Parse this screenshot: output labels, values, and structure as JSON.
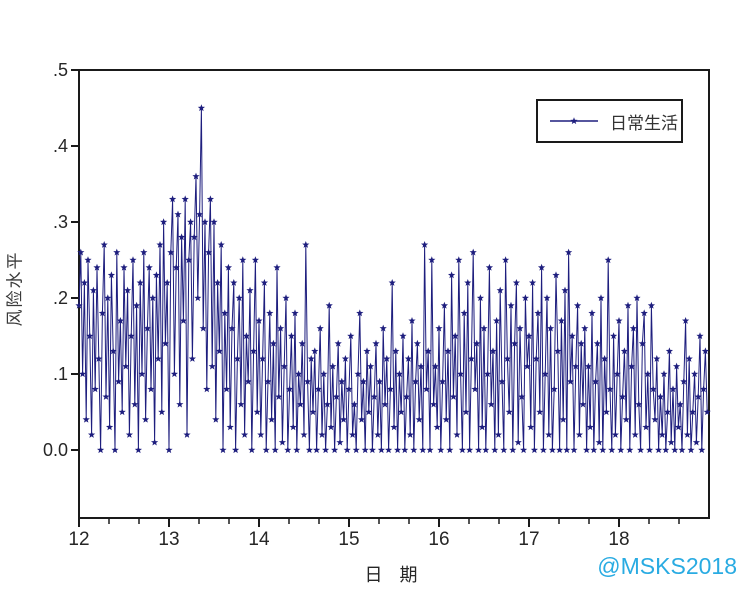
{
  "watermark": {
    "text": "@MSKS2018",
    "color": "#29abe2"
  },
  "axis_color": "#1a1a1a",
  "chart_data": {
    "type": "line",
    "title": "",
    "xlabel": "日 期",
    "ylabel": "风险水平",
    "legend": {
      "label": "日常生活",
      "position": "top-right",
      "marker": "star"
    },
    "series_color": "#1e1e7e",
    "grid": false,
    "xlim": [
      12,
      19
    ],
    "ylim": [
      -0.09,
      0.5
    ],
    "x_tick_labels": [
      "12",
      "13",
      "14",
      "15",
      "16",
      "17",
      "18"
    ],
    "x_tick_values": [
      12,
      13,
      14,
      15,
      16,
      17,
      18
    ],
    "x_minor_ticks_per_unit": 3,
    "y_ticks": [
      {
        "label": "0.0",
        "value": 0.0
      },
      {
        "label": ".1",
        "value": 0.1
      },
      {
        "label": ".2",
        "value": 0.2
      },
      {
        "label": ".3",
        "value": 0.3
      },
      {
        "label": ".4",
        "value": 0.4
      },
      {
        "label": ".5",
        "value": 0.5
      }
    ],
    "x_start": 12,
    "x_step": 0.02,
    "values": [
      0.19,
      0.26,
      0.1,
      0.22,
      0.04,
      0.25,
      0.15,
      0.02,
      0.21,
      0.08,
      0.24,
      0.12,
      0.0,
      0.18,
      0.27,
      0.07,
      0.2,
      0.03,
      0.23,
      0.13,
      0.0,
      0.26,
      0.09,
      0.17,
      0.05,
      0.24,
      0.11,
      0.21,
      0.02,
      0.15,
      0.25,
      0.06,
      0.19,
      0.0,
      0.22,
      0.1,
      0.26,
      0.04,
      0.16,
      0.24,
      0.08,
      0.2,
      0.01,
      0.23,
      0.12,
      0.27,
      0.05,
      0.3,
      0.14,
      0.22,
      0.0,
      0.26,
      0.33,
      0.1,
      0.24,
      0.31,
      0.06,
      0.28,
      0.17,
      0.33,
      0.02,
      0.25,
      0.3,
      0.12,
      0.28,
      0.36,
      0.2,
      0.31,
      0.45,
      0.16,
      0.3,
      0.08,
      0.26,
      0.33,
      0.11,
      0.3,
      0.04,
      0.22,
      0.13,
      0.27,
      0.0,
      0.18,
      0.08,
      0.24,
      0.03,
      0.16,
      0.22,
      0.0,
      0.12,
      0.2,
      0.06,
      0.25,
      0.02,
      0.15,
      0.09,
      0.21,
      0.0,
      0.13,
      0.25,
      0.05,
      0.17,
      0.02,
      0.12,
      0.22,
      0.0,
      0.09,
      0.18,
      0.04,
      0.14,
      0.0,
      0.24,
      0.07,
      0.16,
      0.01,
      0.11,
      0.2,
      0.0,
      0.08,
      0.15,
      0.03,
      0.18,
      0.0,
      0.1,
      0.06,
      0.14,
      0.02,
      0.27,
      0.09,
      0.0,
      0.12,
      0.05,
      0.13,
      0.0,
      0.08,
      0.16,
      0.02,
      0.1,
      0.0,
      0.06,
      0.19,
      0.03,
      0.11,
      0.0,
      0.07,
      0.14,
      0.01,
      0.09,
      0.04,
      0.12,
      0.0,
      0.08,
      0.15,
      0.02,
      0.06,
      0.0,
      0.1,
      0.18,
      0.04,
      0.09,
      0.0,
      0.13,
      0.05,
      0.11,
      0.0,
      0.07,
      0.14,
      0.02,
      0.09,
      0.0,
      0.16,
      0.06,
      0.12,
      0.0,
      0.08,
      0.22,
      0.03,
      0.13,
      0.0,
      0.1,
      0.05,
      0.15,
      0.0,
      0.07,
      0.12,
      0.02,
      0.17,
      0.0,
      0.09,
      0.14,
      0.04,
      0.11,
      0.0,
      0.27,
      0.08,
      0.13,
      0.0,
      0.25,
      0.06,
      0.11,
      0.03,
      0.16,
      0.0,
      0.09,
      0.19,
      0.04,
      0.13,
      0.0,
      0.23,
      0.07,
      0.15,
      0.02,
      0.25,
      0.1,
      0.0,
      0.18,
      0.05,
      0.22,
      0.0,
      0.12,
      0.26,
      0.08,
      0.14,
      0.0,
      0.2,
      0.03,
      0.16,
      0.0,
      0.1,
      0.24,
      0.06,
      0.13,
      0.0,
      0.17,
      0.02,
      0.21,
      0.09,
      0.0,
      0.25,
      0.12,
      0.05,
      0.19,
      0.0,
      0.14,
      0.22,
      0.01,
      0.16,
      0.07,
      0.0,
      0.2,
      0.11,
      0.15,
      0.03,
      0.22,
      0.0,
      0.12,
      0.18,
      0.05,
      0.24,
      0.0,
      0.1,
      0.2,
      0.02,
      0.16,
      0.0,
      0.08,
      0.23,
      0.13,
      0.0,
      0.17,
      0.04,
      0.21,
      0.0,
      0.26,
      0.09,
      0.15,
      0.0,
      0.11,
      0.19,
      0.02,
      0.14,
      0.06,
      0.16,
      0.0,
      0.11,
      0.03,
      0.18,
      0.0,
      0.09,
      0.14,
      0.01,
      0.2,
      0.0,
      0.12,
      0.05,
      0.25,
      0.08,
      0.0,
      0.15,
      0.02,
      0.1,
      0.17,
      0.0,
      0.07,
      0.13,
      0.04,
      0.19,
      0.0,
      0.11,
      0.16,
      0.02,
      0.2,
      0.06,
      0.0,
      0.14,
      0.18,
      0.03,
      0.1,
      0.0,
      0.19,
      0.08,
      0.04,
      0.12,
      0.0,
      0.07,
      0.02,
      0.1,
      0.0,
      0.05,
      0.13,
      0.01,
      0.08,
      0.0,
      0.11,
      0.03,
      0.06,
      0.0,
      0.09,
      0.17,
      0.02,
      0.12,
      0.0,
      0.05,
      0.1,
      0.01,
      0.07,
      0.15,
      0.0,
      0.08,
      0.13,
      0.05
    ]
  }
}
